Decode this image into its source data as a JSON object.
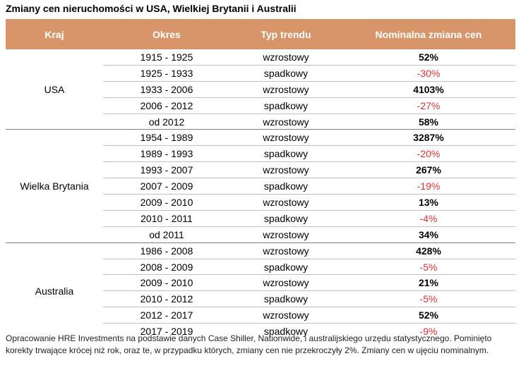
{
  "title": "Zmiany cen nieruchomości w USA, Wielkiej Brytanii i Australii",
  "colors": {
    "header_bg": "#d8956a",
    "negative": "#e03030"
  },
  "chart_data": {
    "type": "table",
    "columns": [
      "Kraj",
      "Okres",
      "Typ trendu",
      "Nominalna zmiana cen"
    ],
    "groups": [
      {
        "country": "USA",
        "rows": [
          {
            "period": "1915 - 1925",
            "trend": "wzrostowy",
            "change": "52%",
            "value": 52
          },
          {
            "period": "1925 - 1933",
            "trend": "spadkowy",
            "change": "-30%",
            "value": -30
          },
          {
            "period": "1933 - 2006",
            "trend": "wzrostowy",
            "change": "4103%",
            "value": 4103
          },
          {
            "period": "2006 - 2012",
            "trend": "spadkowy",
            "change": "-27%",
            "value": -27
          },
          {
            "period": "od 2012",
            "trend": "wzrostowy",
            "change": "58%",
            "value": 58
          }
        ]
      },
      {
        "country": "Wielka Brytania",
        "rows": [
          {
            "period": "1954 - 1989",
            "trend": "wzrostowy",
            "change": "3287%",
            "value": 3287
          },
          {
            "period": "1989 - 1993",
            "trend": "spadkowy",
            "change": "-20%",
            "value": -20
          },
          {
            "period": "1993 - 2007",
            "trend": "wzrostowy",
            "change": "267%",
            "value": 267
          },
          {
            "period": "2007 - 2009",
            "trend": "spadkowy",
            "change": "-19%",
            "value": -19
          },
          {
            "period": "2009 - 2010",
            "trend": "wzrostowy",
            "change": "13%",
            "value": 13
          },
          {
            "period": "2010 - 2011",
            "trend": "spadkowy",
            "change": "-4%",
            "value": -4
          },
          {
            "period": "od 2011",
            "trend": "wzrostowy",
            "change": "34%",
            "value": 34
          }
        ]
      },
      {
        "country": "Australia",
        "rows": [
          {
            "period": "1986 - 2008",
            "trend": "wzrostowy",
            "change": "428%",
            "value": 428
          },
          {
            "period": "2008 - 2009",
            "trend": "spadkowy",
            "change": "-5%",
            "value": -5
          },
          {
            "period": "2009 - 2010",
            "trend": "wzrostowy",
            "change": "21%",
            "value": 21
          },
          {
            "period": "2010 - 2012",
            "trend": "spadkowy",
            "change": "-5%",
            "value": -5
          },
          {
            "period": "2012 - 2017",
            "trend": "wzrostowy",
            "change": "52%",
            "value": 52
          },
          {
            "period": "2017 - 2019",
            "trend": "spadkowy",
            "change": "-9%",
            "value": -9
          }
        ]
      }
    ]
  },
  "footnote": "Opracowanie HRE Investments na podstawie danych Case Shiller, Nationwide, i australijskiego urzędu statystycznego. Pominięto korekty trwające krócej niż rok, oraz te, w przypadku których, zmiany cen nie przekroczyły 2%. Zmiany cen w ujęciu nominalnym."
}
